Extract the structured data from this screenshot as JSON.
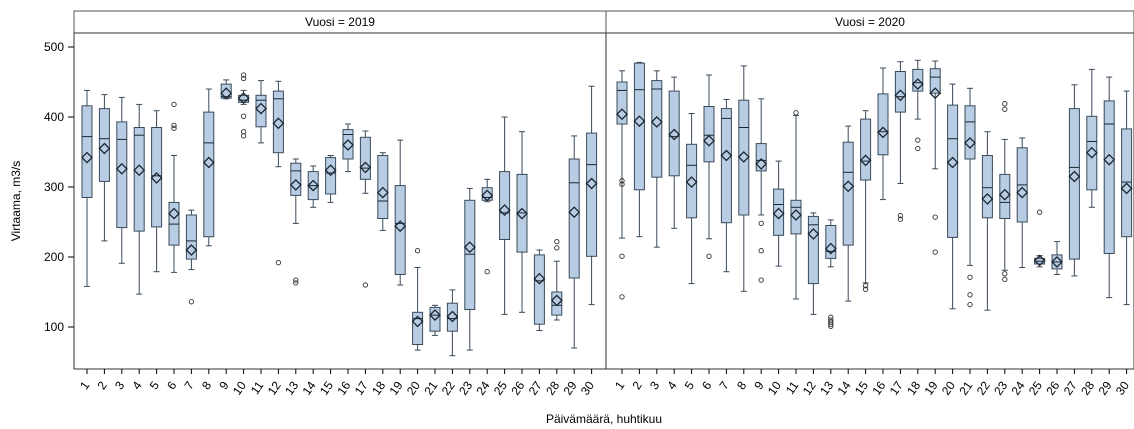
{
  "chart_data": {
    "type": "box",
    "xlabel": "Päivämäärä, huhtikuu",
    "ylabel": "Virtaama, m3/s",
    "ylim": [
      40,
      520
    ],
    "yticks": [
      100,
      200,
      300,
      400,
      500
    ],
    "box_fill": "#b8cde3",
    "box_stroke": "#3a4a5a",
    "grid": false,
    "panels": [
      {
        "label": "Vuosi = 2019",
        "categories": [
          "1",
          "2",
          "3",
          "4",
          "5",
          "6",
          "7",
          "8",
          "9",
          "10",
          "11",
          "12",
          "13",
          "14",
          "15",
          "16",
          "17",
          "18",
          "19",
          "20",
          "21",
          "22",
          "23",
          "24",
          "25",
          "26",
          "27",
          "28",
          "29",
          "30"
        ],
        "boxes": [
          {
            "min": 158,
            "q1": 285,
            "median": 372,
            "q3": 416,
            "max": 438,
            "mean": 342,
            "outliers": []
          },
          {
            "min": 223,
            "q1": 308,
            "median": 369,
            "q3": 412,
            "max": 432,
            "mean": 355,
            "outliers": []
          },
          {
            "min": 191,
            "q1": 242,
            "median": 368,
            "q3": 393,
            "max": 428,
            "mean": 326,
            "outliers": []
          },
          {
            "min": 147,
            "q1": 237,
            "median": 374,
            "q3": 385,
            "max": 418,
            "mean": 324,
            "outliers": []
          },
          {
            "min": 179,
            "q1": 243,
            "median": 316,
            "q3": 385,
            "max": 409,
            "mean": 313,
            "outliers": []
          },
          {
            "min": 178,
            "q1": 217,
            "median": 247,
            "q3": 278,
            "max": 345,
            "mean": 262,
            "outliers": [
              384,
              388,
              418
            ]
          },
          {
            "min": 182,
            "q1": 197,
            "median": 223,
            "q3": 260,
            "max": 267,
            "mean": 210,
            "outliers": [
              136
            ]
          },
          {
            "min": 216,
            "q1": 229,
            "median": 363,
            "q3": 407,
            "max": 440,
            "mean": 335,
            "outliers": []
          },
          {
            "min": 426,
            "q1": 427,
            "median": 429,
            "q3": 447,
            "max": 453,
            "mean": 434,
            "outliers": []
          },
          {
            "min": 418,
            "q1": 421,
            "median": 424,
            "q3": 431,
            "max": 438,
            "mean": 427,
            "outliers": [
              373,
              379,
              401,
              455,
              460
            ]
          },
          {
            "min": 363,
            "q1": 386,
            "median": 424,
            "q3": 431,
            "max": 452,
            "mean": 412,
            "outliers": []
          },
          {
            "min": 329,
            "q1": 349,
            "median": 426,
            "q3": 437,
            "max": 451,
            "mean": 391,
            "outliers": [
              192
            ]
          },
          {
            "min": 248,
            "q1": 288,
            "median": 323,
            "q3": 334,
            "max": 340,
            "mean": 303,
            "outliers": [
              163,
              167
            ]
          },
          {
            "min": 271,
            "q1": 282,
            "median": 302,
            "q3": 322,
            "max": 330,
            "mean": 302,
            "outliers": []
          },
          {
            "min": 278,
            "q1": 290,
            "median": 320,
            "q3": 342,
            "max": 345,
            "mean": 324,
            "outliers": []
          },
          {
            "min": 322,
            "q1": 340,
            "median": 375,
            "q3": 382,
            "max": 390,
            "mean": 360,
            "outliers": []
          },
          {
            "min": 291,
            "q1": 311,
            "median": 327,
            "q3": 371,
            "max": 380,
            "mean": 328,
            "outliers": [
              160
            ]
          },
          {
            "min": 238,
            "q1": 255,
            "median": 280,
            "q3": 345,
            "max": 349,
            "mean": 292,
            "outliers": []
          },
          {
            "min": 160,
            "q1": 175,
            "median": 248,
            "q3": 302,
            "max": 367,
            "mean": 244,
            "outliers": []
          },
          {
            "min": 67,
            "q1": 75,
            "median": 112,
            "q3": 121,
            "max": 185,
            "mean": 108,
            "outliers": [
              209
            ]
          },
          {
            "min": 88,
            "q1": 94,
            "median": 117,
            "q3": 128,
            "max": 131,
            "mean": 117,
            "outliers": []
          },
          {
            "min": 59,
            "q1": 94,
            "median": 112,
            "q3": 134,
            "max": 153,
            "mean": 115,
            "outliers": []
          },
          {
            "min": 67,
            "q1": 125,
            "median": 204,
            "q3": 281,
            "max": 298,
            "mean": 214,
            "outliers": []
          },
          {
            "min": 279,
            "q1": 281,
            "median": 285,
            "q3": 299,
            "max": 311,
            "mean": 288,
            "outliers": [
              179
            ]
          },
          {
            "min": 118,
            "q1": 225,
            "median": 263,
            "q3": 322,
            "max": 400,
            "mean": 267,
            "outliers": []
          },
          {
            "min": 121,
            "q1": 207,
            "median": 263,
            "q3": 318,
            "max": 379,
            "mean": 262,
            "outliers": []
          },
          {
            "min": 95,
            "q1": 104,
            "median": 166,
            "q3": 203,
            "max": 210,
            "mean": 169,
            "outliers": []
          },
          {
            "min": 110,
            "q1": 117,
            "median": 131,
            "q3": 150,
            "max": 194,
            "mean": 138,
            "outliers": [
              213,
              222
            ]
          },
          {
            "min": 70,
            "q1": 170,
            "median": 306,
            "q3": 340,
            "max": 373,
            "mean": 264,
            "outliers": []
          },
          {
            "min": 132,
            "q1": 201,
            "median": 332,
            "q3": 377,
            "max": 444,
            "mean": 305,
            "outliers": []
          }
        ]
      },
      {
        "label": "Vuosi = 2020",
        "categories": [
          "1",
          "2",
          "3",
          "4",
          "5",
          "6",
          "7",
          "8",
          "9",
          "10",
          "11",
          "12",
          "13",
          "14",
          "15",
          "16",
          "17",
          "18",
          "19",
          "20",
          "21",
          "22",
          "23",
          "24",
          "25",
          "26",
          "27",
          "28",
          "29",
          "30"
        ],
        "boxes": [
          {
            "min": 227,
            "q1": 390,
            "median": 438,
            "q3": 450,
            "max": 466,
            "mean": 404,
            "outliers": [
              143,
              201,
              304,
              309
            ]
          },
          {
            "min": 229,
            "q1": 296,
            "median": 439,
            "q3": 477,
            "max": 478,
            "mean": 394,
            "outliers": []
          },
          {
            "min": 214,
            "q1": 314,
            "median": 440,
            "q3": 452,
            "max": 466,
            "mean": 393,
            "outliers": []
          },
          {
            "min": 241,
            "q1": 316,
            "median": 372,
            "q3": 437,
            "max": 457,
            "mean": 375,
            "outliers": []
          },
          {
            "min": 162,
            "q1": 256,
            "median": 331,
            "q3": 361,
            "max": 405,
            "mean": 307,
            "outliers": []
          },
          {
            "min": 226,
            "q1": 336,
            "median": 374,
            "q3": 415,
            "max": 460,
            "mean": 366,
            "outliers": [
              201
            ]
          },
          {
            "min": 179,
            "q1": 249,
            "median": 398,
            "q3": 412,
            "max": 425,
            "mean": 345,
            "outliers": []
          },
          {
            "min": 151,
            "q1": 260,
            "median": 385,
            "q3": 424,
            "max": 473,
            "mean": 343,
            "outliers": []
          },
          {
            "min": 260,
            "q1": 323,
            "median": 338,
            "q3": 362,
            "max": 426,
            "mean": 333,
            "outliers": [
              167,
              209,
              248
            ]
          },
          {
            "min": 187,
            "q1": 231,
            "median": 275,
            "q3": 297,
            "max": 337,
            "mean": 262,
            "outliers": []
          },
          {
            "min": 140,
            "q1": 233,
            "median": 271,
            "q3": 281,
            "max": 402,
            "mean": 260,
            "outliers": [
              406
            ]
          },
          {
            "min": 118,
            "q1": 162,
            "median": 246,
            "q3": 258,
            "max": 263,
            "mean": 233,
            "outliers": []
          },
          {
            "min": 186,
            "q1": 198,
            "median": 208,
            "q3": 245,
            "max": 253,
            "mean": 212,
            "outliers": [
              101,
              104,
              107,
              110,
              114
            ]
          },
          {
            "min": 137,
            "q1": 217,
            "median": 321,
            "q3": 364,
            "max": 387,
            "mean": 301,
            "outliers": []
          },
          {
            "min": 163,
            "q1": 310,
            "median": 337,
            "q3": 397,
            "max": 409,
            "mean": 338,
            "outliers": [
              154,
              159
            ]
          },
          {
            "min": 282,
            "q1": 346,
            "median": 379,
            "q3": 433,
            "max": 470,
            "mean": 378,
            "outliers": []
          },
          {
            "min": 305,
            "q1": 407,
            "median": 429,
            "q3": 465,
            "max": 479,
            "mean": 431,
            "outliers": [
              254,
              259
            ]
          },
          {
            "min": 397,
            "q1": 437,
            "median": 449,
            "q3": 468,
            "max": 481,
            "mean": 447,
            "outliers": [
              355,
              367
            ]
          },
          {
            "min": 326,
            "q1": 434,
            "median": 457,
            "q3": 469,
            "max": 480,
            "mean": 434,
            "outliers": [
              207,
              257
            ]
          },
          {
            "min": 126,
            "q1": 228,
            "median": 369,
            "q3": 417,
            "max": 447,
            "mean": 335,
            "outliers": []
          },
          {
            "min": 188,
            "q1": 340,
            "median": 393,
            "q3": 416,
            "max": 441,
            "mean": 363,
            "outliers": [
              132,
              146,
              171
            ]
          },
          {
            "min": 124,
            "q1": 256,
            "median": 299,
            "q3": 345,
            "max": 379,
            "mean": 283,
            "outliers": []
          },
          {
            "min": 181,
            "q1": 255,
            "median": 278,
            "q3": 318,
            "max": 368,
            "mean": 289,
            "outliers": [
              168,
              176,
              411,
              419
            ]
          },
          {
            "min": 185,
            "q1": 250,
            "median": 303,
            "q3": 356,
            "max": 370,
            "mean": 292,
            "outliers": []
          },
          {
            "min": 186,
            "q1": 190,
            "median": 194,
            "q3": 198,
            "max": 202,
            "mean": 195,
            "outliers": [
              264
            ]
          },
          {
            "min": 175,
            "q1": 183,
            "median": 193,
            "q3": 203,
            "max": 222,
            "mean": 193,
            "outliers": []
          },
          {
            "min": 173,
            "q1": 197,
            "median": 328,
            "q3": 412,
            "max": 446,
            "mean": 315,
            "outliers": []
          },
          {
            "min": 271,
            "q1": 296,
            "median": 365,
            "q3": 401,
            "max": 468,
            "mean": 349,
            "outliers": []
          },
          {
            "min": 142,
            "q1": 205,
            "median": 390,
            "q3": 423,
            "max": 457,
            "mean": 339,
            "outliers": []
          },
          {
            "min": 132,
            "q1": 229,
            "median": 307,
            "q3": 383,
            "max": 437,
            "mean": 298,
            "outliers": []
          }
        ]
      }
    ]
  }
}
